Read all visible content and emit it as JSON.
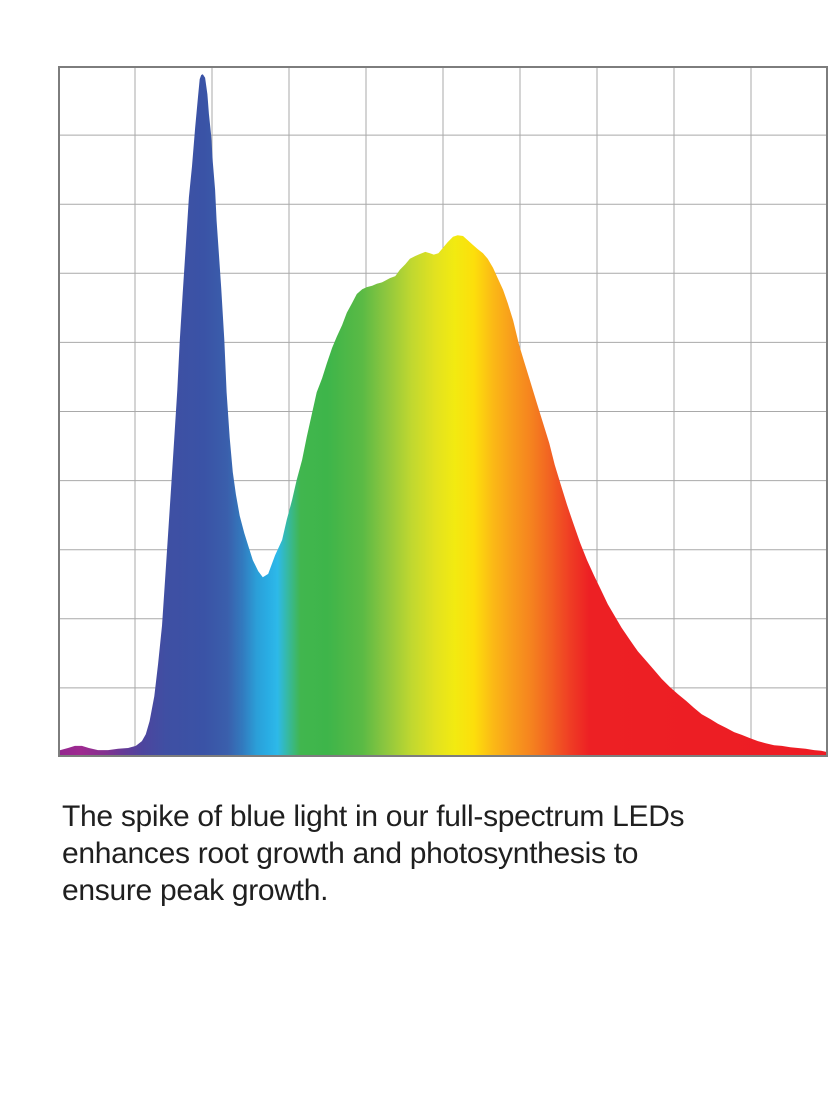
{
  "page": {
    "background_color": "#ffffff"
  },
  "caption": {
    "color": "#1f1f1f",
    "lines": [
      "The spike of blue light in our full-spectrum LEDs",
      "enhances root growth and photosynthesis to",
      "ensure peak growth."
    ]
  },
  "chart_data": {
    "type": "area",
    "title": "",
    "xlabel": "",
    "ylabel": "",
    "description": "Unlabeled spectral power distribution of a full-spectrum LED: narrow blue spike, dip, broad green-yellow-red hump, long red tail. Area fill is a horizontal rainbow (wavelength) gradient. x = 0-1 across chart width, y = relative intensity 0-1.",
    "xlim": [
      0,
      1
    ],
    "ylim": [
      0,
      1
    ],
    "grid": {
      "cols": 10,
      "rows": 10,
      "line_color": "#a9a9a9",
      "line_width": 1,
      "border_color": "#7d7d7d",
      "border_width": 2,
      "background": "#ffffff"
    },
    "legend": "none",
    "key_points": {
      "blue_spike_peak": [
        0.187,
        0.988
      ],
      "valley": [
        0.266,
        0.26
      ],
      "broad_hump_peak": [
        0.519,
        0.755
      ],
      "right_tail_end": [
        1.0,
        0.007
      ]
    },
    "gradient_stops": [
      [
        0.0,
        "#93278f"
      ],
      [
        0.03,
        "#9e2a90"
      ],
      [
        0.06,
        "#84318f"
      ],
      [
        0.085,
        "#653b97"
      ],
      [
        0.11,
        "#4d459e"
      ],
      [
        0.14,
        "#3f4fa3"
      ],
      [
        0.19,
        "#3a53a6"
      ],
      [
        0.22,
        "#3a5fac"
      ],
      [
        0.24,
        "#327bbf"
      ],
      [
        0.258,
        "#2b9fd8"
      ],
      [
        0.272,
        "#29ace3"
      ],
      [
        0.285,
        "#2db9e9"
      ],
      [
        0.298,
        "#36b9a4"
      ],
      [
        0.315,
        "#41b64e"
      ],
      [
        0.35,
        "#3eb54a"
      ],
      [
        0.395,
        "#5aba45"
      ],
      [
        0.425,
        "#8cc63f"
      ],
      [
        0.46,
        "#c1d82f"
      ],
      [
        0.49,
        "#e2e220"
      ],
      [
        0.515,
        "#f2ea11"
      ],
      [
        0.54,
        "#fcdf0b"
      ],
      [
        0.565,
        "#fbb916"
      ],
      [
        0.59,
        "#f89c1c"
      ],
      [
        0.615,
        "#f5821f"
      ],
      [
        0.64,
        "#f26122"
      ],
      [
        0.665,
        "#ef3d24"
      ],
      [
        0.69,
        "#ed2024"
      ],
      [
        1.0,
        "#ed1c24"
      ]
    ],
    "series": [
      {
        "name": "relative-intensity",
        "points": [
          [
            0.0,
            0.009
          ],
          [
            0.013,
            0.013
          ],
          [
            0.022,
            0.016
          ],
          [
            0.031,
            0.016
          ],
          [
            0.04,
            0.013
          ],
          [
            0.052,
            0.01
          ],
          [
            0.065,
            0.01
          ],
          [
            0.078,
            0.012
          ],
          [
            0.091,
            0.013
          ],
          [
            0.101,
            0.016
          ],
          [
            0.109,
            0.023
          ],
          [
            0.114,
            0.033
          ],
          [
            0.119,
            0.052
          ],
          [
            0.125,
            0.088
          ],
          [
            0.13,
            0.135
          ],
          [
            0.135,
            0.19
          ],
          [
            0.139,
            0.255
          ],
          [
            0.143,
            0.323
          ],
          [
            0.147,
            0.392
          ],
          [
            0.151,
            0.462
          ],
          [
            0.155,
            0.531
          ],
          [
            0.158,
            0.601
          ],
          [
            0.162,
            0.671
          ],
          [
            0.166,
            0.74
          ],
          [
            0.17,
            0.81
          ],
          [
            0.174,
            0.855
          ],
          [
            0.178,
            0.91
          ],
          [
            0.182,
            0.957
          ],
          [
            0.184,
            0.981
          ],
          [
            0.186,
            0.987
          ],
          [
            0.188,
            0.988
          ],
          [
            0.191,
            0.983
          ],
          [
            0.194,
            0.959
          ],
          [
            0.196,
            0.931
          ],
          [
            0.199,
            0.899
          ],
          [
            0.201,
            0.861
          ],
          [
            0.204,
            0.821
          ],
          [
            0.206,
            0.776
          ],
          [
            0.209,
            0.728
          ],
          [
            0.212,
            0.679
          ],
          [
            0.216,
            0.604
          ],
          [
            0.219,
            0.528
          ],
          [
            0.223,
            0.462
          ],
          [
            0.227,
            0.412
          ],
          [
            0.231,
            0.38
          ],
          [
            0.236,
            0.349
          ],
          [
            0.242,
            0.324
          ],
          [
            0.247,
            0.306
          ],
          [
            0.253,
            0.285
          ],
          [
            0.26,
            0.269
          ],
          [
            0.266,
            0.26
          ],
          [
            0.273,
            0.265
          ],
          [
            0.282,
            0.292
          ],
          [
            0.291,
            0.314
          ],
          [
            0.297,
            0.343
          ],
          [
            0.304,
            0.372
          ],
          [
            0.31,
            0.401
          ],
          [
            0.317,
            0.43
          ],
          [
            0.323,
            0.463
          ],
          [
            0.33,
            0.498
          ],
          [
            0.336,
            0.528
          ],
          [
            0.343,
            0.548
          ],
          [
            0.349,
            0.569
          ],
          [
            0.356,
            0.592
          ],
          [
            0.362,
            0.608
          ],
          [
            0.369,
            0.625
          ],
          [
            0.375,
            0.643
          ],
          [
            0.382,
            0.657
          ],
          [
            0.388,
            0.67
          ],
          [
            0.395,
            0.677
          ],
          [
            0.401,
            0.68
          ],
          [
            0.408,
            0.682
          ],
          [
            0.414,
            0.685
          ],
          [
            0.421,
            0.687
          ],
          [
            0.426,
            0.69
          ],
          [
            0.431,
            0.693
          ],
          [
            0.438,
            0.696
          ],
          [
            0.444,
            0.705
          ],
          [
            0.451,
            0.713
          ],
          [
            0.457,
            0.721
          ],
          [
            0.464,
            0.725
          ],
          [
            0.47,
            0.728
          ],
          [
            0.477,
            0.731
          ],
          [
            0.483,
            0.729
          ],
          [
            0.488,
            0.727
          ],
          [
            0.494,
            0.729
          ],
          [
            0.5,
            0.737
          ],
          [
            0.506,
            0.745
          ],
          [
            0.513,
            0.753
          ],
          [
            0.519,
            0.755
          ],
          [
            0.526,
            0.754
          ],
          [
            0.532,
            0.748
          ],
          [
            0.539,
            0.741
          ],
          [
            0.545,
            0.735
          ],
          [
            0.552,
            0.729
          ],
          [
            0.558,
            0.721
          ],
          [
            0.565,
            0.708
          ],
          [
            0.571,
            0.693
          ],
          [
            0.578,
            0.676
          ],
          [
            0.584,
            0.657
          ],
          [
            0.591,
            0.632
          ],
          [
            0.599,
            0.596
          ],
          [
            0.606,
            0.57
          ],
          [
            0.614,
            0.541
          ],
          [
            0.622,
            0.512
          ],
          [
            0.63,
            0.483
          ],
          [
            0.638,
            0.454
          ],
          [
            0.645,
            0.423
          ],
          [
            0.653,
            0.394
          ],
          [
            0.661,
            0.365
          ],
          [
            0.669,
            0.339
          ],
          [
            0.678,
            0.31
          ],
          [
            0.687,
            0.285
          ],
          [
            0.696,
            0.263
          ],
          [
            0.705,
            0.242
          ],
          [
            0.714,
            0.221
          ],
          [
            0.723,
            0.204
          ],
          [
            0.732,
            0.187
          ],
          [
            0.743,
            0.169
          ],
          [
            0.753,
            0.153
          ],
          [
            0.764,
            0.139
          ],
          [
            0.774,
            0.126
          ],
          [
            0.784,
            0.113
          ],
          [
            0.795,
            0.101
          ],
          [
            0.805,
            0.091
          ],
          [
            0.816,
            0.081
          ],
          [
            0.826,
            0.071
          ],
          [
            0.836,
            0.062
          ],
          [
            0.847,
            0.055
          ],
          [
            0.857,
            0.048
          ],
          [
            0.868,
            0.042
          ],
          [
            0.878,
            0.036
          ],
          [
            0.888,
            0.032
          ],
          [
            0.899,
            0.027
          ],
          [
            0.909,
            0.023
          ],
          [
            0.919,
            0.02
          ],
          [
            0.93,
            0.017
          ],
          [
            0.94,
            0.016
          ],
          [
            0.951,
            0.014
          ],
          [
            0.961,
            0.013
          ],
          [
            0.971,
            0.012
          ],
          [
            0.982,
            0.01
          ],
          [
            0.991,
            0.009
          ],
          [
            1.0,
            0.007
          ]
        ]
      }
    ]
  }
}
